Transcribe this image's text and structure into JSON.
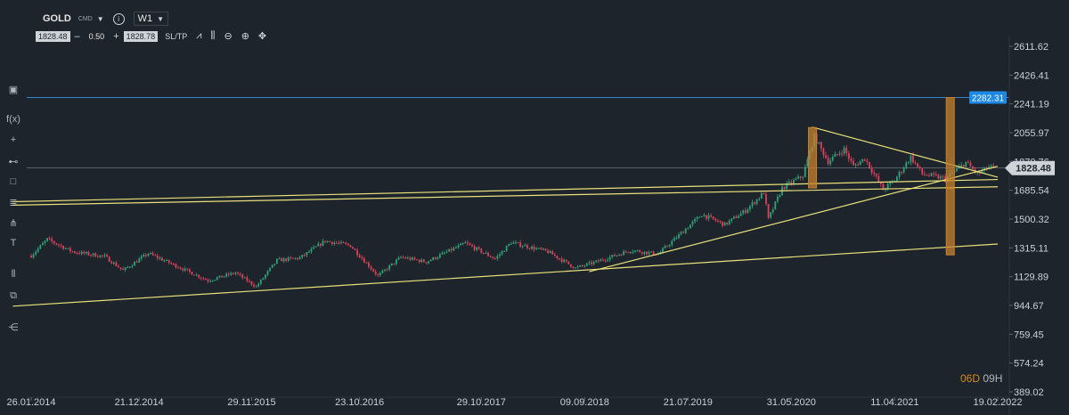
{
  "toolbar": {
    "symbol": "GOLD",
    "symbol_type": "CMD",
    "timeframe": "W1",
    "sell_price": "1828.48",
    "minus": "–",
    "lot": "0.50",
    "plus": "+",
    "buy_price": "1828.78",
    "sltp": "SL/TP",
    "icons": [
      "line-chart-icon",
      "candles-icon",
      "zoom-out-icon",
      "zoom-in-icon",
      "crosshair-icon"
    ]
  },
  "left_toolbar": {
    "icons": [
      "panel-icon",
      "indicator-fx-icon",
      "crosshair-plus-icon",
      "line-tool-icon",
      "rectangle-icon",
      "fibonacci-icon",
      "pitchfork-icon",
      "text-tool-icon",
      "layout-icon",
      "layers-icon",
      "share-icon"
    ],
    "fx_label": "f(x)",
    "text_label": "T"
  },
  "countdown": {
    "days": "06D",
    "hours": "09H"
  },
  "colors": {
    "background": "#1d242b",
    "bull": "#2ea37a",
    "bear": "#e0405a",
    "trendline": "#e8e07a",
    "level_line": "#2f87c9",
    "level_tag": "#1e88e5",
    "current_price_tag": "#cfd4d8",
    "box": "#c8802e",
    "countdown": "#d68a1a"
  },
  "chart_data": {
    "type": "candlestick",
    "symbol": "GOLD",
    "timeframe": "W1",
    "x_tick_labels": [
      "26.01.2014",
      "21.12.2014",
      "29.11.2015",
      "23.10.2016",
      "29.10.2017",
      "09.09.2018",
      "21.07.2019",
      "31.05.2020",
      "11.04.2021",
      "19.02.2022"
    ],
    "y_tick_labels": [
      "2611.62",
      "2426.41",
      "2241.19",
      "2055.97",
      "1870.76",
      "1685.54",
      "1500.32",
      "1315.11",
      "1129.89",
      "944.67",
      "759.45",
      "574.24",
      "389.02"
    ],
    "ylim": [
      389.02,
      2611.62
    ],
    "xlim": [
      "2014-01-26",
      "2022-02-19"
    ],
    "current_price": 1828.48,
    "horizontal_level": 2282.31,
    "close_path": [
      [
        "2014-01-26",
        1265
      ],
      [
        "2014-03-16",
        1370
      ],
      [
        "2014-06-01",
        1290
      ],
      [
        "2014-09-07",
        1260
      ],
      [
        "2014-11-02",
        1170
      ],
      [
        "2015-01-18",
        1280
      ],
      [
        "2015-04-12",
        1200
      ],
      [
        "2015-07-19",
        1105
      ],
      [
        "2015-10-11",
        1155
      ],
      [
        "2015-12-13",
        1065
      ],
      [
        "2016-02-14",
        1235
      ],
      [
        "2016-04-24",
        1250
      ],
      [
        "2016-07-10",
        1360
      ],
      [
        "2016-09-25",
        1330
      ],
      [
        "2016-12-18",
        1135
      ],
      [
        "2017-02-26",
        1255
      ],
      [
        "2017-05-14",
        1225
      ],
      [
        "2017-09-10",
        1345
      ],
      [
        "2017-12-10",
        1245
      ],
      [
        "2018-01-28",
        1350
      ],
      [
        "2018-05-20",
        1290
      ],
      [
        "2018-08-12",
        1185
      ],
      [
        "2018-10-14",
        1225
      ],
      [
        "2019-01-27",
        1300
      ],
      [
        "2019-04-21",
        1275
      ],
      [
        "2019-06-30",
        1410
      ],
      [
        "2019-09-01",
        1530
      ],
      [
        "2019-11-10",
        1465
      ],
      [
        "2020-01-12",
        1555
      ],
      [
        "2020-03-08",
        1670
      ],
      [
        "2020-03-22",
        1500
      ],
      [
        "2020-05-03",
        1700
      ],
      [
        "2020-07-05",
        1780
      ],
      [
        "2020-08-09",
        2030
      ],
      [
        "2020-09-20",
        1870
      ],
      [
        "2020-11-08",
        1950
      ],
      [
        "2020-12-06",
        1840
      ],
      [
        "2021-01-10",
        1890
      ],
      [
        "2021-03-07",
        1690
      ],
      [
        "2021-04-11",
        1750
      ],
      [
        "2021-05-30",
        1900
      ],
      [
        "2021-07-04",
        1790
      ],
      [
        "2021-09-12",
        1760
      ],
      [
        "2021-11-14",
        1865
      ],
      [
        "2021-12-19",
        1790
      ],
      [
        "2022-01-23",
        1835
      ],
      [
        "2022-02-06",
        1828.48
      ]
    ],
    "drawings": {
      "trend_lines": [
        {
          "from": [
            "2013-12-01",
            940
          ],
          "to": [
            "2022-02-19",
            1340
          ]
        },
        {
          "from": [
            "2013-12-01",
            1590
          ],
          "to": [
            "2022-02-19",
            1708
          ]
        },
        {
          "from": [
            "2013-12-01",
            1612
          ],
          "to": [
            "2022-02-19",
            1755
          ]
        },
        {
          "from": [
            "2018-09-23",
            1162
          ],
          "to": [
            "2022-02-19",
            1840
          ]
        },
        {
          "from": [
            "2020-08-02",
            2092
          ],
          "to": [
            "2022-02-19",
            1770
          ]
        }
      ],
      "boxes": [
        {
          "x": "2020-08-02",
          "low": 1700,
          "high": 2089
        },
        {
          "x": "2021-09-26",
          "low": 1697,
          "high": 2282
        },
        {
          "x": "2021-09-26",
          "low": 1270,
          "high": 1697
        }
      ]
    }
  }
}
